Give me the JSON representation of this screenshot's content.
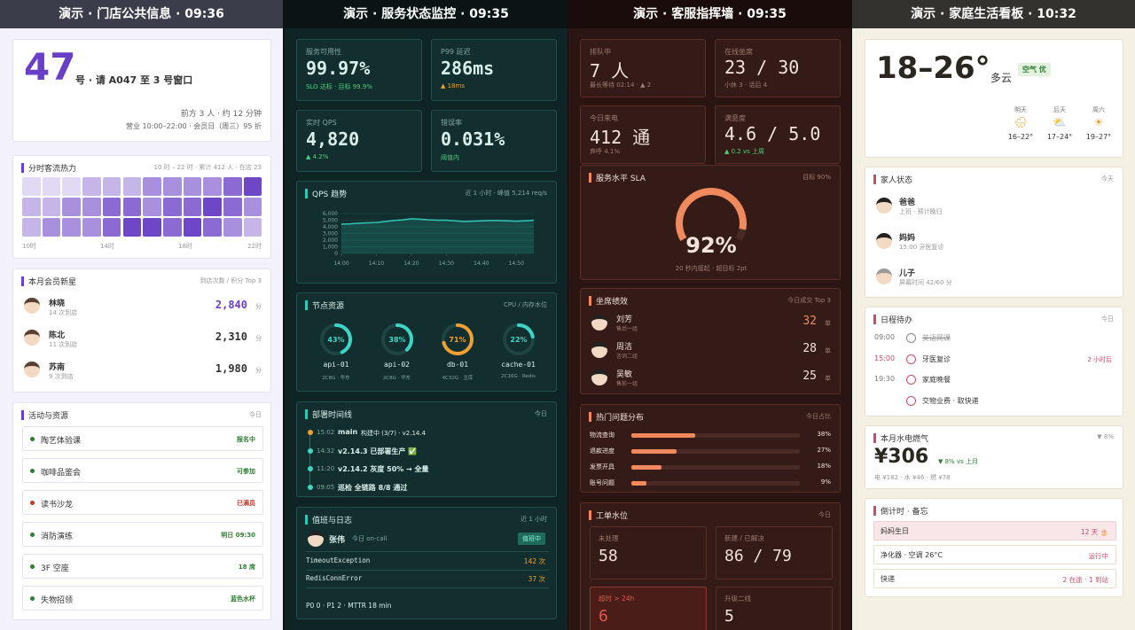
{
  "store": {
    "title": "演示 · 门店公共信息 · 09:36",
    "queue": {
      "number": "47",
      "text": "号 · 请 A047 至 3 号窗口",
      "wait": "前方 3 人 · 约 12 分钟",
      "hours": "营业 10:00–22:00 · 会员日（周三）95 折"
    },
    "traffic": {
      "title": "分时客流热力",
      "meta": "10 时 – 22 时 · 累计 412 人 · 在店 23",
      "rows": [
        [
          1,
          1,
          1,
          2,
          2,
          2,
          3,
          3,
          3,
          3,
          4,
          5
        ],
        [
          2,
          2,
          3,
          3,
          4,
          4,
          3,
          4,
          4,
          5,
          4,
          3
        ],
        [
          2,
          3,
          3,
          3,
          4,
          5,
          5,
          4,
          5,
          4,
          3,
          2
        ]
      ],
      "labels": [
        "10时",
        "14时",
        "18时",
        "22时"
      ]
    },
    "members": {
      "title": "本月会员新星",
      "meta": "到店次数 / 积分 Top 3",
      "items": [
        {
          "name": "林晓",
          "visits": "14 次到店",
          "points": "2,840",
          "unit": "分",
          "color": "#6a3fc8"
        },
        {
          "name": "陈北",
          "visits": "11 次到店",
          "points": "2,310",
          "unit": "分",
          "color": "#333333"
        },
        {
          "name": "苏南",
          "visits": "9 次到店",
          "points": "1,980",
          "unit": "分",
          "color": "#333333"
        }
      ]
    },
    "activities": {
      "title": "活动与资源",
      "meta": "今日",
      "items": [
        {
          "name": "陶艺体验课",
          "status": "报名中",
          "color": "#2e7d32"
        },
        {
          "name": "咖啡品鉴会",
          "status": "可参加",
          "color": "#2e7d32"
        },
        {
          "name": "读书沙龙",
          "status": "已满员",
          "color": "#c0392b"
        },
        {
          "name": "消防演练",
          "status": "明日 09:30",
          "color": "#2e7d32"
        },
        {
          "name": "3F 空座",
          "status": "18 席",
          "color": "#2e7d32"
        },
        {
          "name": "失物招领",
          "status": "蓝色水杯",
          "color": "#2e7d32"
        }
      ]
    }
  },
  "ops": {
    "title": "演示 · 服务状态监控 · 09:35",
    "kpis": [
      {
        "label": "服务可用性",
        "value": "99.97%",
        "note": "SLO 达标 · 目标 99.9%",
        "color": "#4cd07d"
      },
      {
        "label": "P99 延迟",
        "value": "286ms",
        "note": "▲ 18ms",
        "color": "#f0a030"
      },
      {
        "label": "实时 QPS",
        "value": "4,820",
        "note": "▲ 4.2%",
        "color": "#4cd07d"
      },
      {
        "label": "错误率",
        "value": "0.031%",
        "note": "阈值内",
        "color": "#4cd07d"
      }
    ],
    "qps": {
      "title": "QPS 趋势",
      "meta": "近 1 小时 · 峰值 5,214 req/s",
      "chart": {
        "type": "area",
        "color": "#2fc7b5",
        "x": [
          0,
          2.5,
          5,
          7.5,
          10,
          12.5,
          15,
          17.5,
          20,
          22.5,
          25,
          27.5,
          30,
          32.5,
          35,
          37.5,
          40,
          42.5,
          45,
          47.5,
          50,
          52.5,
          55
        ],
        "values": [
          4400,
          4450,
          4550,
          4600,
          4650,
          4800,
          4950,
          5050,
          5214,
          5150,
          5050,
          5000,
          5000,
          4900,
          4800,
          4850,
          4900,
          4950,
          4950,
          4900,
          4850,
          4900,
          5000
        ],
        "xlim": [
          0,
          55
        ],
        "ylim": [
          0,
          6000
        ],
        "xticks": [
          {
            "value": 0,
            "label": "14:00"
          },
          {
            "value": 10,
            "label": "14:10"
          },
          {
            "value": 20,
            "label": "14:20"
          },
          {
            "value": 30,
            "label": "14:30"
          },
          {
            "value": 40,
            "label": "14:40"
          },
          {
            "value": 50,
            "label": "14:50"
          }
        ],
        "yticks": [
          0,
          {
            "value": 1000,
            "label": "1,000"
          },
          {
            "value": 2000,
            "label": "2,000"
          },
          {
            "value": 3000,
            "label": "3,000"
          },
          {
            "value": 4000,
            "label": "4,000"
          },
          {
            "value": 5000,
            "label": "5,000"
          },
          {
            "value": 6000,
            "label": "6,000"
          }
        ],
        "grid": true
      }
    },
    "nodes": {
      "title": "节点资源",
      "meta": "CPU / 内存水位",
      "items": [
        {
          "name": "api-01",
          "value": 43,
          "value_label": "43%",
          "spec": "2C8G · 华东",
          "color": "#3dd6c6"
        },
        {
          "name": "api-02",
          "value": 38,
          "value_label": "38%",
          "spec": "2C8G · 华东",
          "color": "#3dd6c6"
        },
        {
          "name": "db-01",
          "value": 71,
          "value_label": "71%",
          "spec": "4C32G · 主库",
          "color": "#f0a030"
        },
        {
          "name": "cache-01",
          "value": 22,
          "value_label": "22%",
          "spec": "2C16G · Redis",
          "color": "#3dd6c6"
        }
      ]
    },
    "timeline": {
      "title": "部署时间线",
      "meta": "今日",
      "items": [
        {
          "time": "15:02",
          "strong": "main",
          "text": "构建中 (3/7) · v2.14.4",
          "color": "#f0a030"
        },
        {
          "time": "14:32",
          "strong": "v2.14.3 已部署生产 ✅",
          "color": "#3dd6c6"
        },
        {
          "time": "11:20",
          "strong": "v2.14.2 灰度 50% → 全量",
          "color": "#3dd6c6"
        },
        {
          "time": "09:05",
          "strong": "巡检 全链路 8/8 通过",
          "color": "#3dd6c6"
        }
      ]
    },
    "oncall": {
      "title": "值班与日志",
      "meta": "近 1 小时",
      "person": "张伟",
      "role": "今日 on-call",
      "badge": "值班中",
      "logs": [
        {
          "name": "TimeoutException",
          "count": "142 次"
        },
        {
          "name": "RedisConnError",
          "count": "37 次"
        }
      ],
      "summary": "P0 0 · P1 2 · MTTR 18 min"
    }
  },
  "service": {
    "title": "演示 · 客服指挥墙 · 09:35",
    "kpis": [
      {
        "label": "排队中",
        "value": "7 人",
        "note": "最长等待 02:14 · ▲ 2",
        "color": "#a07a70"
      },
      {
        "label": "在线坐席",
        "value": "23 / 30",
        "note": "小休 3 · 话后 4",
        "color": "#a07a70"
      },
      {
        "label": "今日来电",
        "value": "412 通",
        "note": "弃呼 4.1%",
        "color": "#a07a70"
      },
      {
        "label": "满意度",
        "value": "4.6 / 5.0",
        "note": "▲ 0.2 vs 上周",
        "color": "#4cd07d"
      }
    ],
    "sla": {
      "title": "服务水平 SLA",
      "meta": "目标 90%",
      "value": 92,
      "value_label": "92%",
      "note": "20 秒内接起 · 超目标 2pt",
      "color": "#f08a5d"
    },
    "agents": {
      "title": "坐席绩效",
      "meta": "今日成交 Top 3",
      "items": [
        {
          "name": "刘芳",
          "team": "售后一组",
          "count": "32",
          "unit": "单",
          "color": "#f08a5d"
        },
        {
          "name": "周洁",
          "team": "咨询二组",
          "count": "28",
          "unit": "单",
          "color": "#f3e3dc"
        },
        {
          "name": "吴敏",
          "team": "售前一组",
          "count": "25",
          "unit": "单",
          "color": "#f3e3dc"
        }
      ]
    },
    "topics": {
      "title": "热门问题分布",
      "meta": "今日占比",
      "color": "#f08a5d",
      "xlim": [
        0,
        100
      ],
      "categories": [
        "物流查询",
        "退款进度",
        "发票开具",
        "账号问题"
      ],
      "values": [
        38,
        27,
        18,
        9
      ],
      "value_labels": [
        "38%",
        "27%",
        "18%",
        "9%"
      ]
    },
    "tickets": {
      "title": "工单水位",
      "meta": "今日",
      "items": [
        {
          "label": "未处理",
          "value": "58",
          "color": "#f3e3dc"
        },
        {
          "label": "新建 / 已解决",
          "value": "86 / 79",
          "color": "#f3e3dc"
        },
        {
          "label": "超时 > 24h",
          "value": "6",
          "color": "#e05a4a"
        },
        {
          "label": "升级二线",
          "value": "5",
          "color": "#f3e3dc"
        }
      ]
    }
  },
  "home": {
    "title": "演示 · 家庭生活看板 · 10:32",
    "weather": {
      "temp": "18–26°",
      "desc": "多云",
      "air": "空气 优",
      "forecast": [
        {
          "day": "明天",
          "icon": "🌧",
          "range": "16–22°"
        },
        {
          "day": "后天",
          "icon": "⛅",
          "range": "17–24°"
        },
        {
          "day": "周六",
          "icon": "☀",
          "range": "19–27°"
        }
      ]
    },
    "family": {
      "title": "家人状态",
      "meta": "今天",
      "members": [
        {
          "name": "爸爸",
          "status": "上班 · 预计晚归"
        },
        {
          "name": "妈妈",
          "status": "15:00 牙医复诊"
        },
        {
          "name": "儿子",
          "status": "屏幕时间 42/60 分"
        }
      ]
    },
    "todo": {
      "title": "日程待办",
      "meta": "今日",
      "items": [
        {
          "time": "09:00",
          "task": "英语网课",
          "done": true
        },
        {
          "time": "15:00",
          "task": "牙医复诊",
          "note": "2 小时后"
        },
        {
          "time": "19:30",
          "task": "家庭晚餐"
        },
        {
          "task": "交物业费 · 取快递"
        }
      ]
    },
    "bills": {
      "title": "本月水电燃气",
      "meta": "▼ 8%",
      "total": "¥306",
      "change": "▼ 8% vs 上月",
      "detail": "电 ¥182 · 水 ¥46 · 燃 ¥78"
    },
    "countdown": {
      "title": "倒计时 · 备忘",
      "items": [
        {
          "name": "妈妈生日",
          "value": "12 天 🎂",
          "highlight": true
        },
        {
          "name": "净化器 · 空调 26°C",
          "value": "运行中"
        },
        {
          "name": "快递",
          "value": "2 在途 · 1 到站"
        }
      ]
    }
  }
}
